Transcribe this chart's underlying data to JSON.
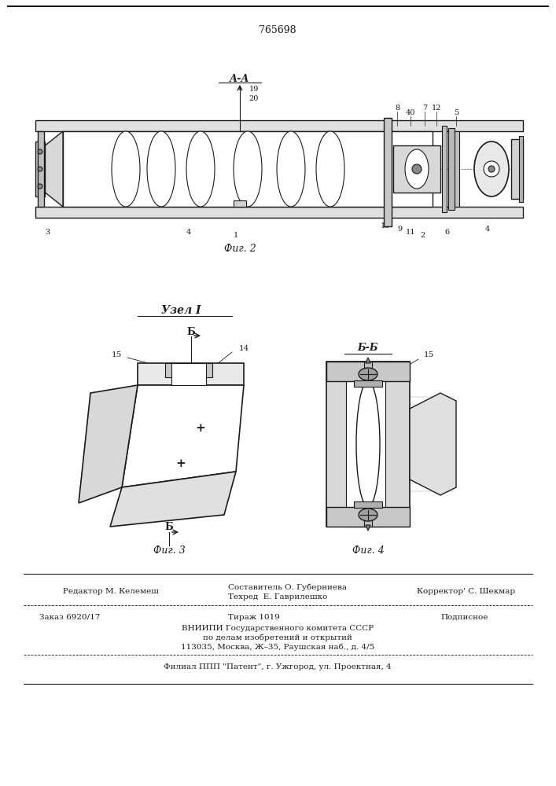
{
  "patent_number": "765698",
  "bg_color": "#ffffff",
  "line_color": "#1a1a1a",
  "fig2_label": "Фиг. 2",
  "fig3_label": "Фиг. 3",
  "fig4_label": "Фиг. 4",
  "section_label_aa": "А-А",
  "section_label_bb": "Б-Б",
  "node_label": "Узел I",
  "editor_line": "Редактор М. Келемеш",
  "composer_line1": "Составитель О. Губерниева",
  "composer_line2": "Техред  Е. Гаврилешко",
  "corrector_line": "Корректор' С. Шекмар",
  "order_line": "Заказ 6920/17",
  "circulation_line": "Тираж 1019",
  "subscription_line": "Подписное",
  "vniip_line1": "ВНИИПИ Государственного комитета СССР",
  "vniip_line2": "по делам изобретений и открытий",
  "vniip_line3": "113035, Москва, Ж–35, Раушская наб., д. 4/5",
  "filial_line": "Филиал ППП \"Патент\", г. Ужгород, ул. Проектная, 4",
  "font_size_main": 7.5,
  "font_size_patent": 9,
  "font_size_label": 8
}
